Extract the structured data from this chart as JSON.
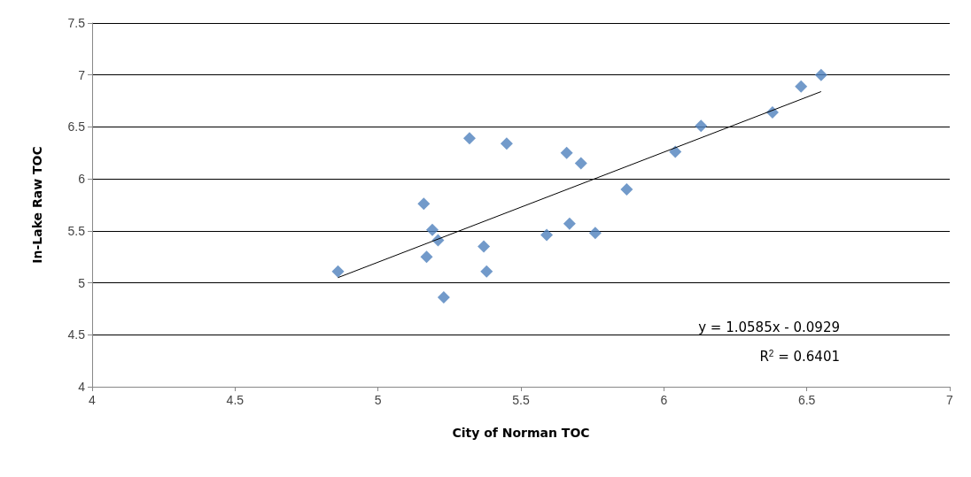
{
  "chart_data": {
    "type": "scatter",
    "xlabel": "City of Norman TOC",
    "ylabel": "In-Lake Raw TOC",
    "x": [
      4.86,
      5.16,
      5.19,
      5.21,
      5.17,
      5.23,
      5.32,
      5.37,
      5.38,
      5.45,
      5.59,
      5.66,
      5.67,
      5.71,
      5.76,
      5.87,
      6.04,
      6.13,
      6.38,
      6.48,
      6.55
    ],
    "series": [
      {
        "color": "#4f81bd",
        "marker": "diamond",
        "values": [
          5.11,
          5.76,
          5.51,
          5.41,
          5.25,
          4.86,
          6.39,
          5.35,
          5.11,
          6.34,
          5.46,
          6.25,
          5.57,
          6.15,
          5.48,
          5.9,
          6.26,
          6.51,
          6.64,
          6.89,
          7.0
        ]
      },
      {
        "type": "line",
        "color": "#000000",
        "marker": "none",
        "x": [
          4.86,
          6.55
        ],
        "values": [
          5.05,
          6.84
        ]
      }
    ],
    "annotations": [
      "y = 1.0585x - 0.0929",
      "R$^{2}$ = 0.6401"
    ],
    "xlim": [
      4,
      7
    ],
    "xticks": [
      4,
      4.5,
      5,
      5.5,
      6,
      6.5,
      7
    ],
    "ylim": [
      4,
      7.5
    ],
    "yticks": [
      4,
      4.5,
      5,
      5.5,
      6,
      6.5,
      7,
      7.5
    ],
    "grid": "y"
  }
}
